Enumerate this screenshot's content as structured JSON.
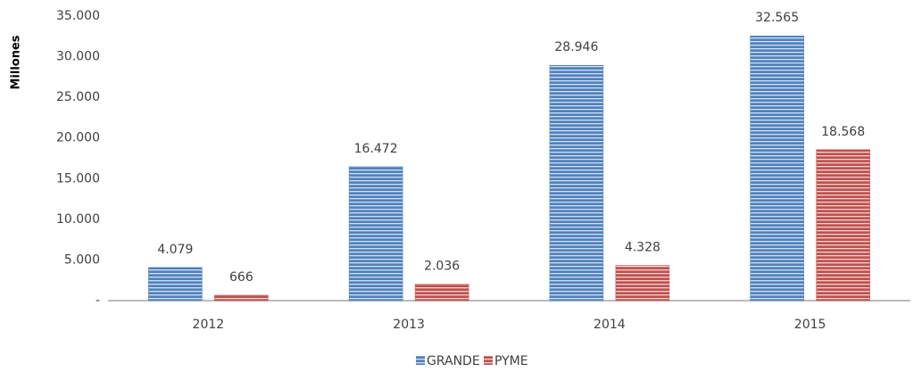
{
  "chart_data": {
    "type": "bar",
    "y_label": "Millones",
    "categories": [
      "2012",
      "2013",
      "2014",
      "2015"
    ],
    "series": [
      {
        "name": "GRANDE",
        "color": "#4f81bd",
        "values": [
          4079,
          16472,
          28946,
          32565
        ],
        "value_labels": [
          "4.079",
          "16.472",
          "28.946",
          "32.565"
        ]
      },
      {
        "name": "PYME",
        "color": "#c0504d",
        "values": [
          666,
          2036,
          4328,
          18568
        ],
        "value_labels": [
          "666",
          "2.036",
          "4.328",
          "18.568"
        ]
      }
    ],
    "ylim": [
      0,
      35000
    ],
    "yticks": [
      {
        "value": 0,
        "label": "-"
      },
      {
        "value": 5000,
        "label": "5.000"
      },
      {
        "value": 10000,
        "label": "10.000"
      },
      {
        "value": 15000,
        "label": "15.000"
      },
      {
        "value": 20000,
        "label": "20.000"
      },
      {
        "value": 25000,
        "label": "25.000"
      },
      {
        "value": 30000,
        "label": "30.000"
      },
      {
        "value": 35000,
        "label": "35.000"
      }
    ],
    "grid": false,
    "legend": "bottom"
  }
}
